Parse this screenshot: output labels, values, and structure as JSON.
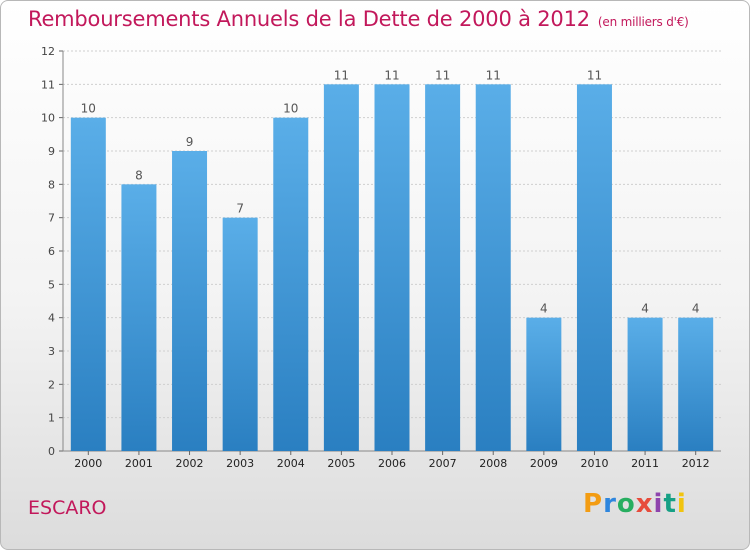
{
  "title": "Remboursements Annuels de la Dette de 2000 à 2012",
  "unit_label": "(en milliers d'€)",
  "location": "ESCARO",
  "logo": {
    "text": "Proxiti",
    "colors": [
      "#f39c12",
      "#2e86de",
      "#27ae60",
      "#e74c3c",
      "#8e44ad",
      "#16a085",
      "#f1c40f"
    ]
  },
  "chart_data": {
    "type": "bar",
    "categories": [
      "2000",
      "2001",
      "2002",
      "2003",
      "2004",
      "2005",
      "2006",
      "2007",
      "2008",
      "2009",
      "2010",
      "2011",
      "2012"
    ],
    "values": [
      10,
      8,
      9,
      7,
      10,
      11,
      11,
      11,
      11,
      4,
      11,
      4,
      4
    ],
    "ylim": [
      0,
      12
    ],
    "yticks": [
      0,
      1,
      2,
      3,
      4,
      5,
      6,
      7,
      8,
      9,
      10,
      11,
      12
    ],
    "grid": true,
    "bar_color_top": "#5aaee8",
    "bar_color_bottom": "#2a7fc1"
  }
}
